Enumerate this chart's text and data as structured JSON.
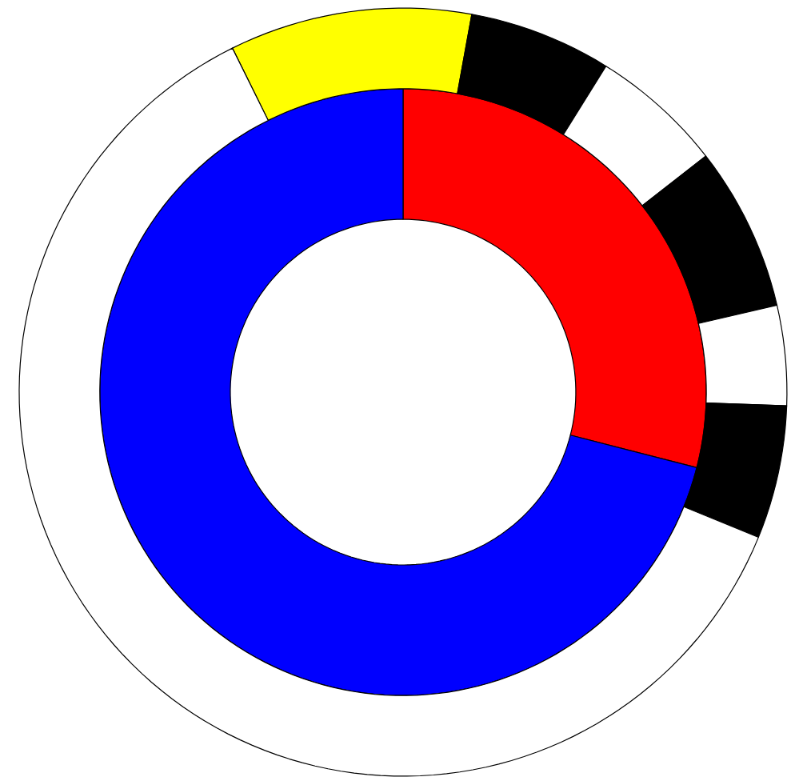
{
  "chart_data": [
    {
      "type": "donut",
      "categories": [
        null,
        null
      ],
      "values": [
        29,
        71
      ],
      "colors": [
        "#ff0000",
        "#0000ff"
      ]
    },
    {
      "type": "donut",
      "categories": [
        null,
        null,
        null,
        null,
        null,
        null,
        null
      ],
      "values": [
        10.2,
        6.0,
        5.6,
        6.9,
        4.2,
        5.6,
        61.5
      ],
      "colors": [
        "#ffff00",
        "#000000",
        "#ffffff",
        "#000000",
        "#ffffff",
        "#000000",
        "#ffffff"
      ]
    }
  ]
}
